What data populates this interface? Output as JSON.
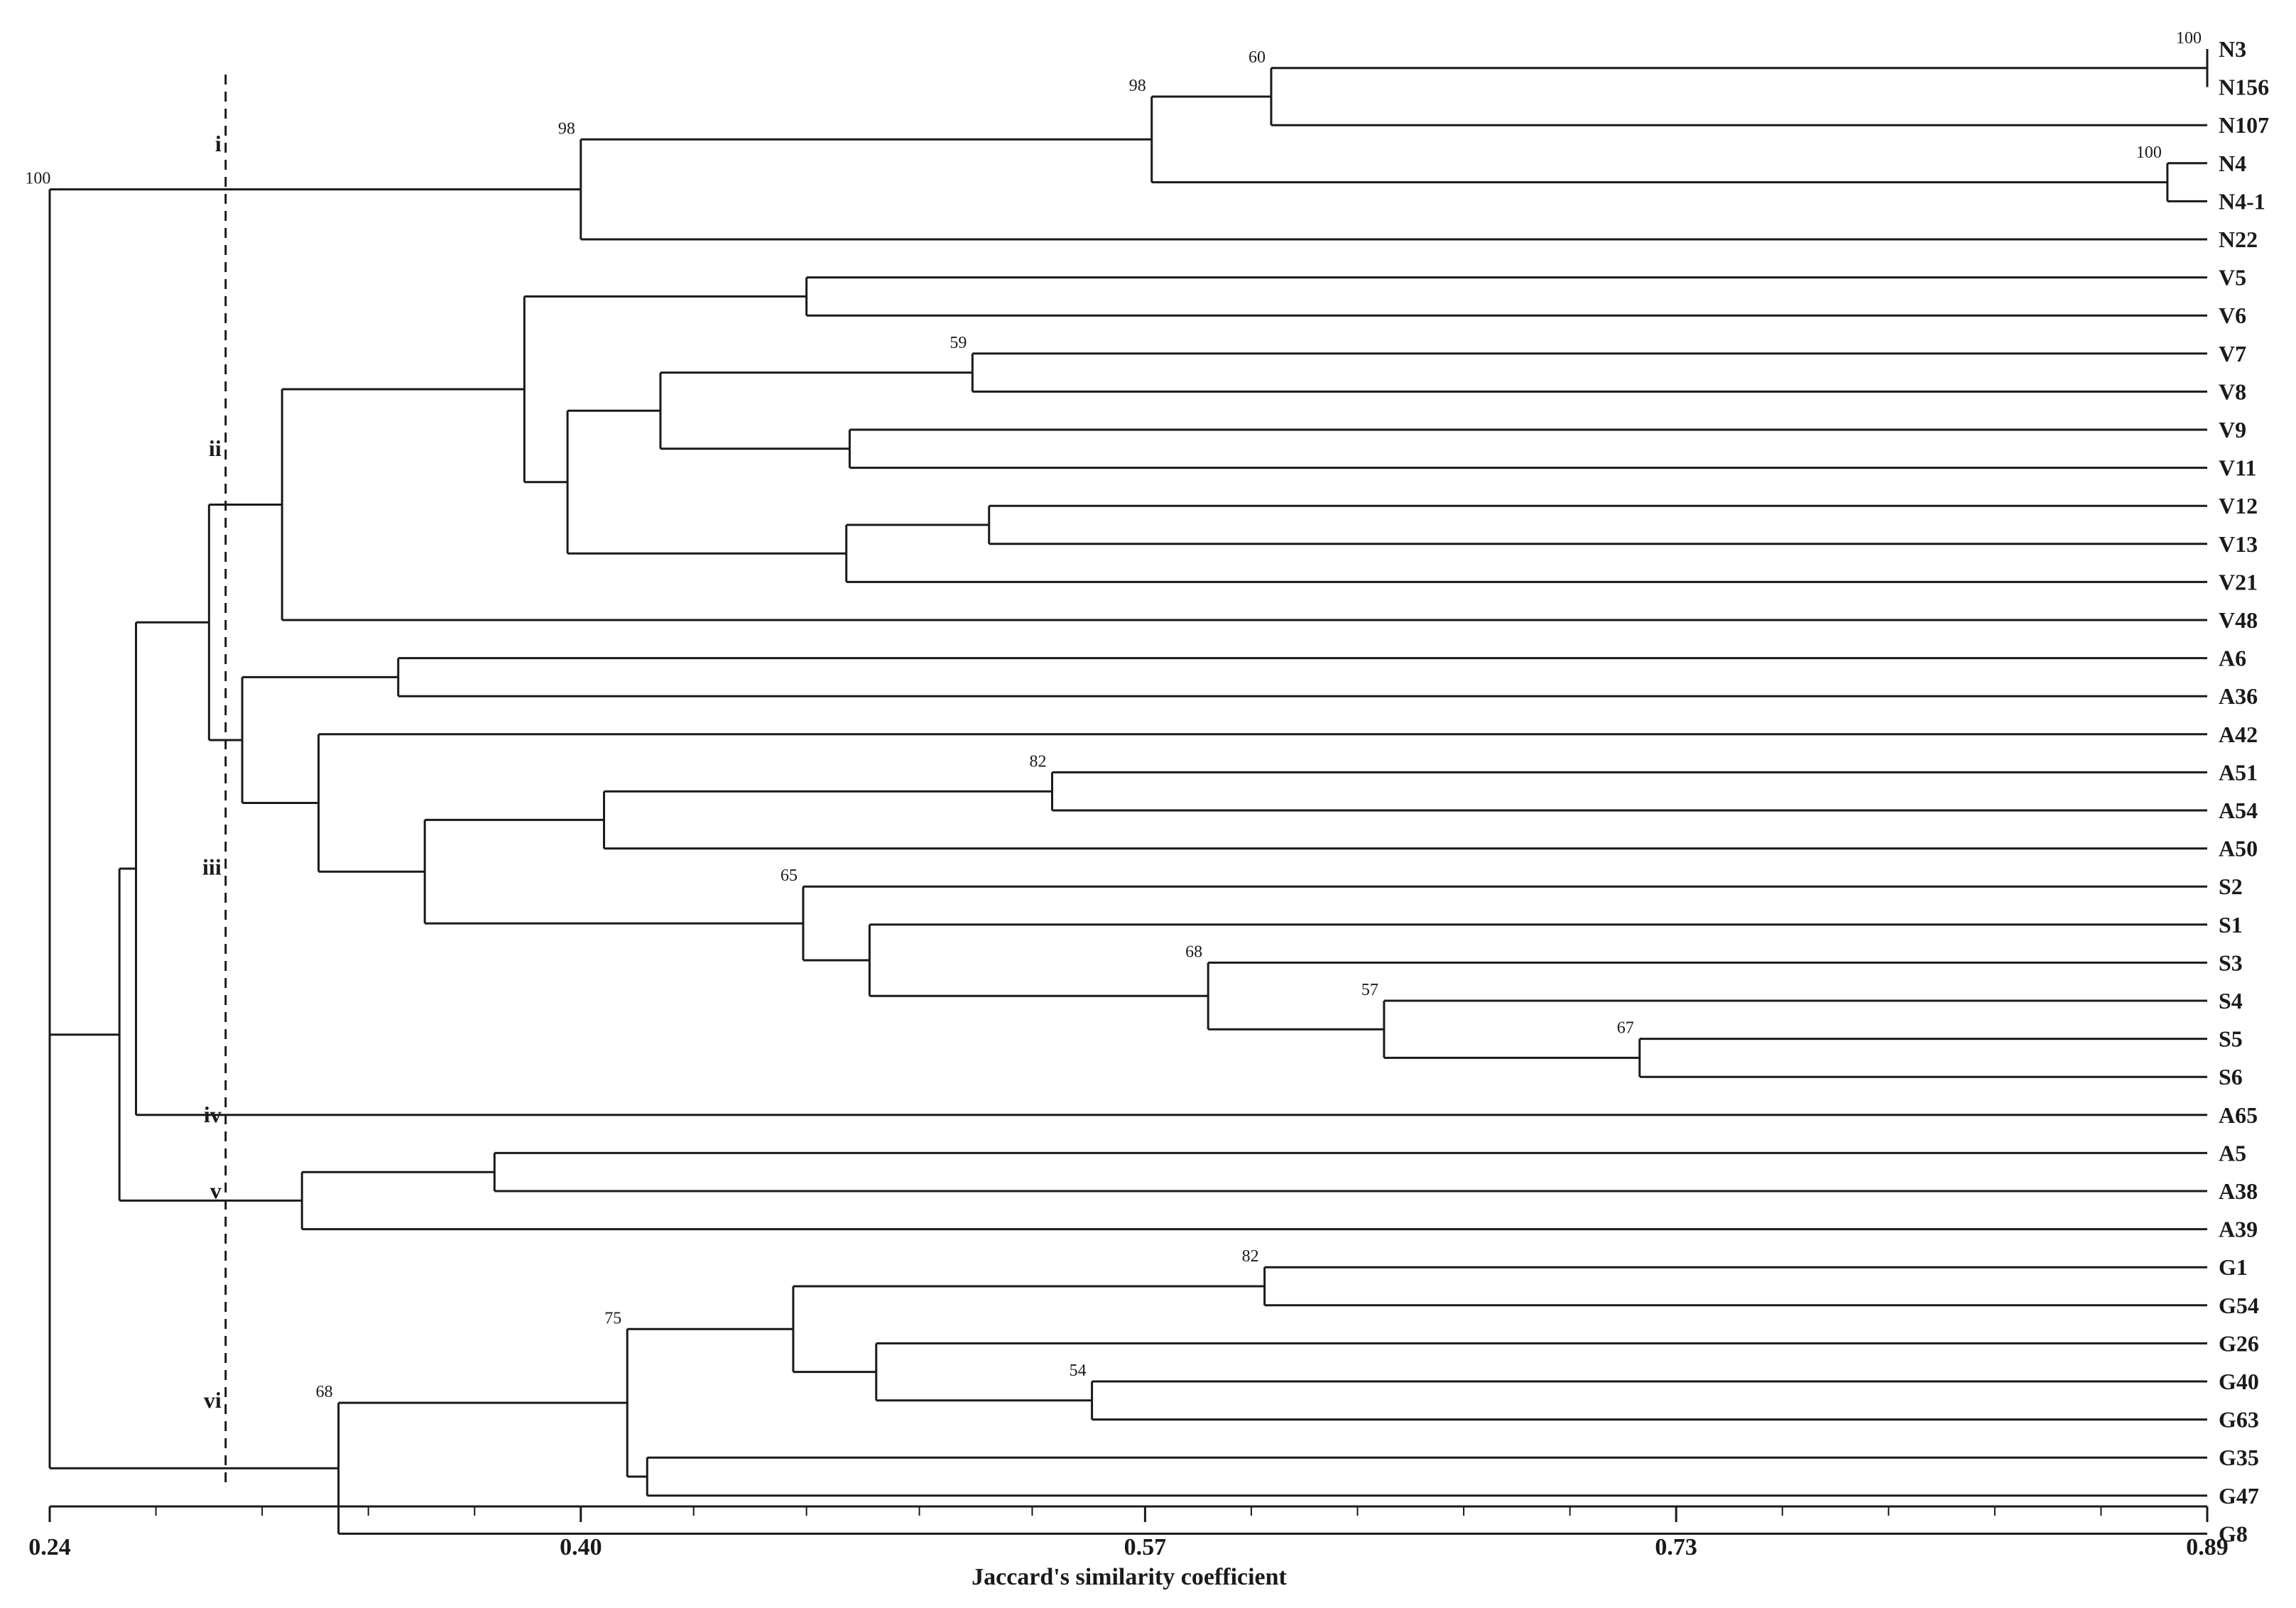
{
  "x_axis": {
    "title": "Jaccard's similarity coefficient",
    "range": [
      0.24,
      0.89
    ],
    "ticks": [
      "0.24",
      "0.40",
      "0.57",
      "0.73",
      "0.89"
    ],
    "tick_values": [
      0.24,
      0.4,
      0.57,
      0.73,
      0.89
    ]
  },
  "cutoff_similarity": 0.293,
  "leaves": [
    "N3",
    "N156",
    "N107",
    "N4",
    "N4-1",
    "N22",
    "V5",
    "V6",
    "V7",
    "V8",
    "V9",
    "V11",
    "V12",
    "V13",
    "V21",
    "V48",
    "A6",
    "A36",
    "A42",
    "A51",
    "A54",
    "A50",
    "S2",
    "S1",
    "S3",
    "S4",
    "S5",
    "S6",
    "A65",
    "A5",
    "A38",
    "A39",
    "G1",
    "G54",
    "G26",
    "G40",
    "G63",
    "G35",
    "G47",
    "G8"
  ],
  "clusters": [
    {
      "label": "i",
      "leaf_range": [
        0,
        5
      ]
    },
    {
      "label": "ii",
      "leaf_range": [
        6,
        15
      ]
    },
    {
      "label": "iii",
      "leaf_range": [
        16,
        27
      ]
    },
    {
      "label": "iv",
      "leaf_range": [
        28,
        28
      ]
    },
    {
      "label": "v",
      "leaf_range": [
        29,
        31
      ]
    },
    {
      "label": "vi",
      "leaf_range": [
        32,
        39
      ]
    }
  ],
  "tree": {
    "s": 0.24,
    "b": "",
    "c": [
      {
        "s": 0.242,
        "b": "100",
        "c": [
          {
            "s": 0.4,
            "b": "98",
            "c": [
              {
                "s": 0.572,
                "b": "98",
                "c": [
                  {
                    "s": 0.608,
                    "b": "60",
                    "c": [
                      {
                        "s": 0.89,
                        "b": "100",
                        "c": [
                          {
                            "l": 0
                          },
                          {
                            "l": 1
                          }
                        ]
                      },
                      {
                        "l": 2
                      }
                    ]
                  },
                  {
                    "s": 0.878,
                    "b": "100",
                    "c": [
                      {
                        "l": 3
                      },
                      {
                        "l": 4
                      }
                    ]
                  }
                ]
              },
              {
                "l": 5
              }
            ]
          }
        ]
      },
      {
        "s": 0.261,
        "b": "",
        "c": [
          {
            "s": 0.266,
            "b": "",
            "c": [
              {
                "s": 0.288,
                "b": "",
                "c": [
                  {
                    "s": 0.31,
                    "b": "",
                    "c": [
                      {
                        "s": 0.383,
                        "b": "",
                        "c": [
                          {
                            "s": 0.468,
                            "b": "",
                            "c": [
                              {
                                "l": 6
                              },
                              {
                                "l": 7
                              }
                            ]
                          },
                          {
                            "s": 0.396,
                            "b": "",
                            "c": [
                              {
                                "s": 0.424,
                                "b": "",
                                "c": [
                                  {
                                    "s": 0.518,
                                    "b": "59",
                                    "c": [
                                      {
                                        "l": 8
                                      },
                                      {
                                        "l": 9
                                      }
                                    ]
                                  },
                                  {
                                    "s": 0.481,
                                    "b": "",
                                    "c": [
                                      {
                                        "l": 10
                                      },
                                      {
                                        "l": 11
                                      }
                                    ]
                                  }
                                ]
                              },
                              {
                                "s": 0.48,
                                "b": "",
                                "c": [
                                  {
                                    "s": 0.523,
                                    "b": "",
                                    "c": [
                                      {
                                        "l": 12
                                      },
                                      {
                                        "l": 13
                                      }
                                    ]
                                  },
                                  {
                                    "l": 14
                                  }
                                ]
                              }
                            ]
                          }
                        ]
                      },
                      {
                        "l": 15
                      }
                    ]
                  },
                  {
                    "s": 0.298,
                    "b": "",
                    "c": [
                      {
                        "s": 0.345,
                        "b": "",
                        "c": [
                          {
                            "l": 16
                          },
                          {
                            "l": 17
                          }
                        ]
                      },
                      {
                        "s": 0.321,
                        "b": "",
                        "c": [
                          {
                            "l": 18
                          },
                          {
                            "s": 0.353,
                            "b": "",
                            "c": [
                              {
                                "s": 0.407,
                                "b": "",
                                "c": [
                                  {
                                    "s": 0.542,
                                    "b": "82",
                                    "c": [
                                      {
                                        "l": 19
                                      },
                                      {
                                        "l": 20
                                      }
                                    ]
                                  },
                                  {
                                    "l": 21
                                  }
                                ]
                              },
                              {
                                "s": 0.467,
                                "b": "65",
                                "c": [
                                  {
                                    "l": 22
                                  },
                                  {
                                    "s": 0.487,
                                    "b": "",
                                    "c": [
                                      {
                                        "l": 23
                                      },
                                      {
                                        "s": 0.589,
                                        "b": "68",
                                        "c": [
                                          {
                                            "l": 24
                                          },
                                          {
                                            "s": 0.642,
                                            "b": "57",
                                            "c": [
                                              {
                                                "l": 25
                                              },
                                              {
                                                "s": 0.719,
                                                "b": "67",
                                                "c": [
                                                  {
                                                    "l": 26
                                                  },
                                                  {
                                                    "l": 27
                                                  }
                                                ]
                                              }
                                            ]
                                          }
                                        ]
                                      }
                                    ]
                                  }
                                ]
                              }
                            ]
                          }
                        ]
                      }
                    ]
                  }
                ]
              },
              {
                "l": 28
              }
            ]
          },
          {
            "s": 0.316,
            "b": "",
            "c": [
              {
                "s": 0.374,
                "b": "",
                "c": [
                  {
                    "l": 29
                  },
                  {
                    "l": 30
                  }
                ]
              },
              {
                "l": 31
              }
            ]
          }
        ]
      },
      {
        "s": 0.327,
        "b": "68",
        "c": [
          {
            "s": 0.414,
            "b": "75",
            "c": [
              {
                "s": 0.464,
                "b": "",
                "c": [
                  {
                    "s": 0.606,
                    "b": "82",
                    "c": [
                      {
                        "l": 32
                      },
                      {
                        "l": 33
                      }
                    ]
                  },
                  {
                    "s": 0.489,
                    "b": "",
                    "c": [
                      {
                        "l": 34
                      },
                      {
                        "s": 0.554,
                        "b": "54",
                        "c": [
                          {
                            "l": 35
                          },
                          {
                            "l": 36
                          }
                        ]
                      }
                    ]
                  }
                ]
              },
              {
                "s": 0.42,
                "b": "",
                "c": [
                  {
                    "l": 37
                  },
                  {
                    "l": 38
                  }
                ]
              }
            ]
          },
          {
            "l": 39
          }
        ]
      }
    ]
  }
}
